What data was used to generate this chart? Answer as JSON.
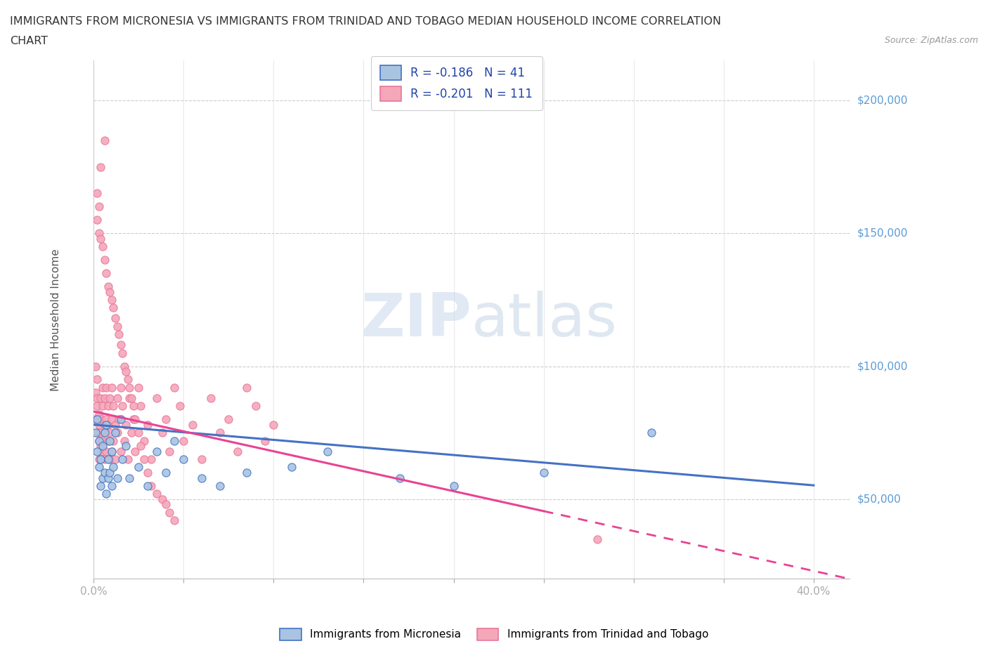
{
  "title_line1": "IMMIGRANTS FROM MICRONESIA VS IMMIGRANTS FROM TRINIDAD AND TOBAGO MEDIAN HOUSEHOLD INCOME CORRELATION",
  "title_line2": "CHART",
  "source": "Source: ZipAtlas.com",
  "ylabel": "Median Household Income",
  "xlim": [
    0.0,
    0.42
  ],
  "ylim": [
    20000,
    215000
  ],
  "yticks": [
    50000,
    100000,
    150000,
    200000
  ],
  "ytick_labels": [
    "$50,000",
    "$100,000",
    "$150,000",
    "$200,000"
  ],
  "xticks": [
    0.0,
    0.05,
    0.1,
    0.15,
    0.2,
    0.25,
    0.3,
    0.35,
    0.4
  ],
  "xtick_labels": [
    "0.0%",
    "",
    "",
    "",
    "",
    "",
    "",
    "",
    "40.0%"
  ],
  "watermark": "ZIPatlas",
  "legend_r1": "R = -0.186   N = 41",
  "legend_r2": "R = -0.201   N = 111",
  "color_micronesia": "#a8c4e0",
  "color_micronesia_edge": "#4472c4",
  "color_trinidad": "#f4a7b9",
  "color_trinidad_edge": "#e87799",
  "color_micronesia_line": "#4472c4",
  "color_trinidad_line": "#e84393",
  "color_ytick_label": "#5b9bd5",
  "background_color": "#ffffff",
  "grid_color": "#cccccc",
  "micronesia_x": [
    0.001,
    0.002,
    0.002,
    0.003,
    0.003,
    0.004,
    0.004,
    0.005,
    0.005,
    0.006,
    0.006,
    0.007,
    0.007,
    0.008,
    0.008,
    0.009,
    0.009,
    0.01,
    0.01,
    0.011,
    0.012,
    0.013,
    0.015,
    0.016,
    0.018,
    0.02,
    0.025,
    0.03,
    0.035,
    0.04,
    0.045,
    0.05,
    0.06,
    0.07,
    0.085,
    0.11,
    0.13,
    0.17,
    0.2,
    0.25,
    0.31
  ],
  "micronesia_y": [
    75000,
    68000,
    80000,
    62000,
    72000,
    65000,
    55000,
    70000,
    58000,
    75000,
    60000,
    78000,
    52000,
    65000,
    58000,
    72000,
    60000,
    55000,
    68000,
    62000,
    75000,
    58000,
    80000,
    65000,
    70000,
    58000,
    62000,
    55000,
    68000,
    60000,
    72000,
    65000,
    58000,
    55000,
    60000,
    62000,
    68000,
    58000,
    55000,
    60000,
    75000
  ],
  "trinidad_x": [
    0.001,
    0.001,
    0.001,
    0.002,
    0.002,
    0.002,
    0.002,
    0.003,
    0.003,
    0.003,
    0.003,
    0.004,
    0.004,
    0.004,
    0.004,
    0.005,
    0.005,
    0.005,
    0.005,
    0.006,
    0.006,
    0.006,
    0.006,
    0.007,
    0.007,
    0.007,
    0.008,
    0.008,
    0.008,
    0.009,
    0.009,
    0.009,
    0.01,
    0.01,
    0.01,
    0.011,
    0.011,
    0.012,
    0.012,
    0.013,
    0.013,
    0.014,
    0.015,
    0.015,
    0.016,
    0.017,
    0.018,
    0.019,
    0.02,
    0.021,
    0.022,
    0.023,
    0.025,
    0.026,
    0.028,
    0.03,
    0.032,
    0.035,
    0.038,
    0.04,
    0.042,
    0.045,
    0.048,
    0.05,
    0.055,
    0.06,
    0.065,
    0.07,
    0.075,
    0.08,
    0.085,
    0.09,
    0.095,
    0.1,
    0.002,
    0.003,
    0.004,
    0.005,
    0.006,
    0.007,
    0.008,
    0.009,
    0.01,
    0.011,
    0.012,
    0.013,
    0.014,
    0.015,
    0.016,
    0.017,
    0.018,
    0.019,
    0.02,
    0.021,
    0.022,
    0.023,
    0.025,
    0.026,
    0.028,
    0.03,
    0.032,
    0.035,
    0.038,
    0.04,
    0.042,
    0.045,
    0.28,
    0.002,
    0.003,
    0.004,
    0.006
  ],
  "trinidad_y": [
    80000,
    90000,
    100000,
    75000,
    85000,
    95000,
    88000,
    72000,
    78000,
    65000,
    82000,
    70000,
    88000,
    75000,
    80000,
    68000,
    92000,
    85000,
    72000,
    78000,
    65000,
    88000,
    75000,
    80000,
    68000,
    92000,
    85000,
    72000,
    78000,
    65000,
    88000,
    75000,
    80000,
    68000,
    92000,
    85000,
    72000,
    78000,
    65000,
    88000,
    75000,
    80000,
    68000,
    92000,
    85000,
    72000,
    78000,
    65000,
    88000,
    75000,
    80000,
    68000,
    92000,
    85000,
    72000,
    78000,
    65000,
    88000,
    75000,
    80000,
    68000,
    92000,
    85000,
    72000,
    78000,
    65000,
    88000,
    75000,
    80000,
    68000,
    92000,
    85000,
    72000,
    78000,
    155000,
    150000,
    148000,
    145000,
    140000,
    135000,
    130000,
    128000,
    125000,
    122000,
    118000,
    115000,
    112000,
    108000,
    105000,
    100000,
    98000,
    95000,
    92000,
    88000,
    85000,
    80000,
    75000,
    70000,
    65000,
    60000,
    55000,
    52000,
    50000,
    48000,
    45000,
    42000,
    35000,
    165000,
    160000,
    175000,
    185000
  ]
}
